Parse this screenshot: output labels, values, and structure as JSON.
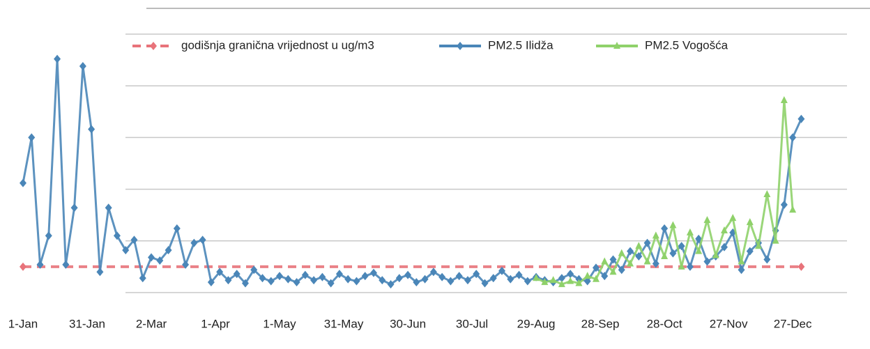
{
  "chart_data": {
    "type": "line",
    "legend": "top",
    "grid": true,
    "xlim": [
      0,
      364
    ],
    "xticks": [
      {
        "value": 0,
        "label": "1-Jan"
      },
      {
        "value": 30,
        "label": "31-Jan"
      },
      {
        "value": 60,
        "label": "2-Mar"
      },
      {
        "value": 90,
        "label": "1-Apr"
      },
      {
        "value": 120,
        "label": "1-May"
      },
      {
        "value": 150,
        "label": "31-May"
      },
      {
        "value": 180,
        "label": "30-Jun"
      },
      {
        "value": 210,
        "label": "30-Jul"
      },
      {
        "value": 240,
        "label": "29-Aug"
      },
      {
        "value": 270,
        "label": "28-Sep"
      },
      {
        "value": 300,
        "label": "28-Oct"
      },
      {
        "value": 330,
        "label": "27-Nov"
      },
      {
        "value": 360,
        "label": "27-Dec"
      }
    ],
    "ylim": [
      0,
      250
    ],
    "yticks": [
      0,
      50,
      100,
      150,
      200,
      250
    ],
    "series": [
      {
        "name": "godišnja granična vrijednost u ug/m3",
        "color": "#e8737a",
        "style": "dashed",
        "marker": "diamond",
        "x": [
          0,
          364
        ],
        "values": [
          25,
          25
        ]
      },
      {
        "name": "PM2.5 Ilidža",
        "color": "#4a86b8",
        "marker": "diamond",
        "x": [
          0,
          4,
          8,
          12,
          16,
          20,
          24,
          28,
          32,
          36,
          40,
          44,
          48,
          52,
          56,
          60,
          64,
          68,
          72,
          76,
          80,
          84,
          88,
          92,
          96,
          100,
          104,
          108,
          112,
          116,
          120,
          124,
          128,
          132,
          136,
          140,
          144,
          148,
          152,
          156,
          160,
          164,
          168,
          172,
          176,
          180,
          184,
          188,
          192,
          196,
          200,
          204,
          208,
          212,
          216,
          220,
          224,
          228,
          232,
          236,
          240,
          244,
          248,
          252,
          256,
          260,
          264,
          268,
          272,
          276,
          280,
          284,
          288,
          292,
          296,
          300,
          304,
          308,
          312,
          316,
          320,
          324,
          328,
          332,
          336,
          340,
          344,
          348,
          352,
          356,
          360,
          364
        ],
        "values": [
          106,
          150,
          27,
          55,
          226,
          27,
          82,
          219,
          158,
          20,
          82,
          55,
          41,
          51,
          14,
          34,
          31,
          41,
          62,
          27,
          48,
          51,
          10,
          20,
          12,
          18,
          9,
          22,
          14,
          11,
          16,
          13,
          10,
          17,
          12,
          15,
          9,
          18,
          13,
          11,
          16,
          19,
          12,
          8,
          14,
          17,
          10,
          13,
          20,
          15,
          11,
          16,
          12,
          18,
          9,
          14,
          21,
          13,
          17,
          11,
          15,
          12,
          10,
          14,
          18,
          13,
          11,
          24,
          16,
          32,
          22,
          40,
          35,
          48,
          28,
          62,
          38,
          45,
          25,
          52,
          30,
          35,
          44,
          58,
          22,
          40,
          48,
          32,
          60,
          85,
          150,
          168
        ]
      },
      {
        "name": "PM2.5 Vogošća",
        "color": "#8fd16a",
        "marker": "triangle",
        "x": [
          240,
          244,
          248,
          252,
          256,
          260,
          264,
          268,
          272,
          276,
          280,
          284,
          288,
          292,
          296,
          300,
          304,
          308,
          312,
          316,
          320,
          324,
          328,
          332,
          336,
          340,
          344,
          348,
          352,
          356,
          360
        ],
        "values": [
          14,
          10,
          12,
          8,
          11,
          9,
          16,
          13,
          30,
          20,
          38,
          28,
          45,
          30,
          55,
          35,
          65,
          25,
          58,
          40,
          70,
          36,
          60,
          72,
          30,
          68,
          45,
          95,
          50,
          186,
          80
        ]
      }
    ]
  }
}
